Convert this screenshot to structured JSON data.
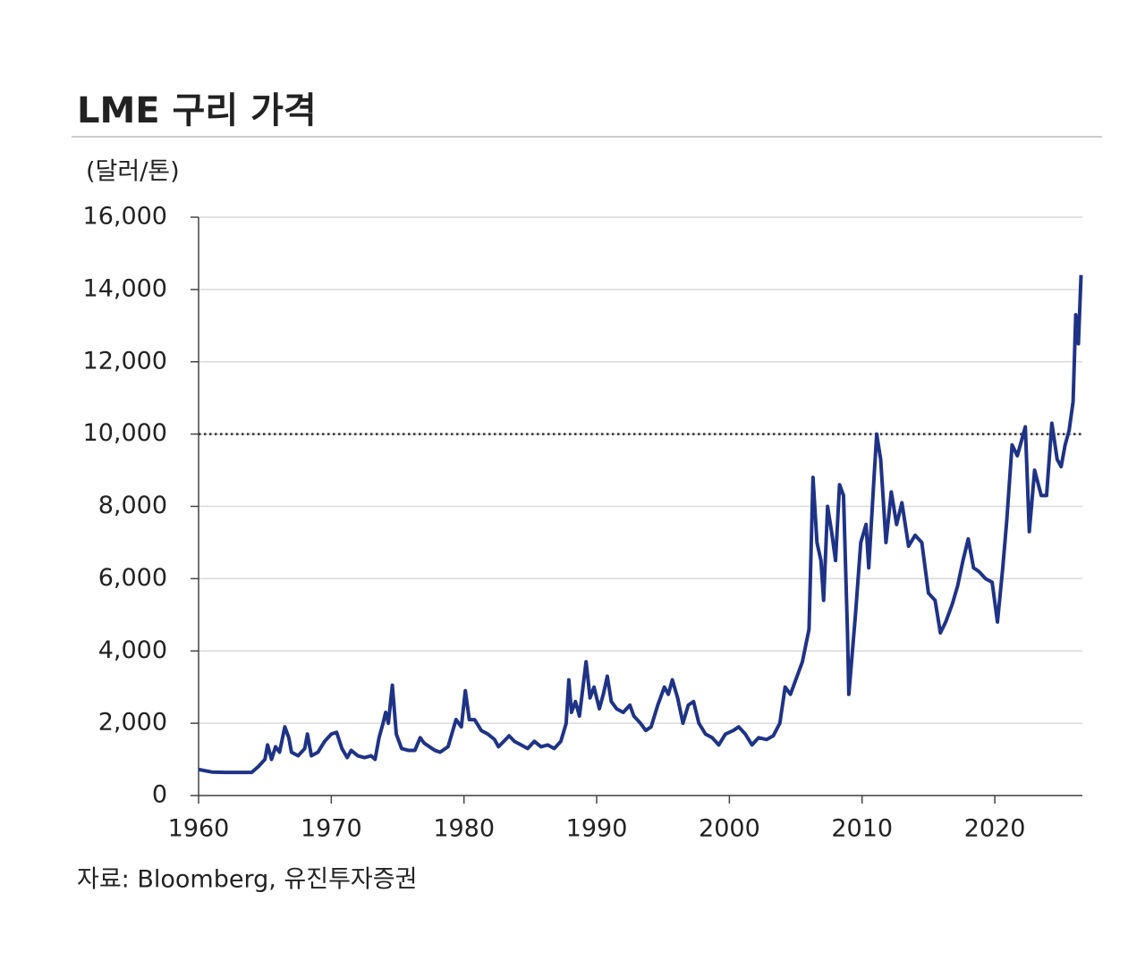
{
  "chart_data": {
    "type": "line",
    "title": "LME 구리 가격",
    "y_label": "(달러/톤)",
    "source": "자료: Bloomberg, 유진투자증권",
    "color": "#1f3386",
    "reference_line": 10000,
    "grid": true,
    "xlim": [
      1960,
      2026.6
    ],
    "ylim": [
      0,
      16000
    ],
    "xticks": [
      1960,
      1970,
      1980,
      1990,
      2000,
      2010,
      2020
    ],
    "yticks": [
      0,
      {
        "value": 2000,
        "label": "2,000"
      },
      {
        "value": 4000,
        "label": "4,000"
      },
      {
        "value": 6000,
        "label": "6,000"
      },
      {
        "value": 8000,
        "label": "8,000"
      },
      {
        "value": 10000,
        "label": "10,000"
      },
      {
        "value": 12000,
        "label": "12,000"
      },
      {
        "value": 14000,
        "label": "14,000"
      },
      {
        "value": 16000,
        "label": "16,000"
      }
    ],
    "x": [
      1960,
      1961,
      1962,
      1963,
      1964,
      1964.5,
      1965,
      1965.2,
      1965.5,
      1965.8,
      1966.1,
      1966.5,
      1966.8,
      1967,
      1967.5,
      1968,
      1968.2,
      1968.5,
      1969,
      1969.5,
      1970,
      1970.4,
      1970.8,
      1971.2,
      1971.5,
      1972,
      1972.5,
      1973,
      1973.3,
      1973.6,
      1973.9,
      1974.1,
      1974.3,
      1974.6,
      1974.9,
      1975.3,
      1975.8,
      1976.3,
      1976.7,
      1977,
      1977.4,
      1977.8,
      1978.2,
      1978.8,
      1979.4,
      1979.8,
      1980.1,
      1980.4,
      1980.8,
      1981.3,
      1981.8,
      1982.3,
      1982.6,
      1983,
      1983.4,
      1983.8,
      1984.3,
      1984.8,
      1985.3,
      1985.8,
      1986.3,
      1986.8,
      1987.3,
      1987.7,
      1987.9,
      1988.1,
      1988.4,
      1988.7,
      1989,
      1989.2,
      1989.5,
      1989.8,
      1990.2,
      1990.5,
      1990.8,
      1991.1,
      1991.5,
      1992,
      1992.5,
      1992.8,
      1993.3,
      1993.7,
      1994.1,
      1994.6,
      1995.1,
      1995.4,
      1995.7,
      1996.1,
      1996.5,
      1996.9,
      1997.3,
      1997.7,
      1998.2,
      1998.7,
      1999.2,
      1999.7,
      2000.3,
      2000.7,
      2001.2,
      2001.7,
      2002.2,
      2002.8,
      2003.3,
      2003.8,
      2004.2,
      2004.6,
      2005,
      2005.5,
      2006,
      2006.3,
      2006.6,
      2006.9,
      2007.1,
      2007.4,
      2007.7,
      2008,
      2008.3,
      2008.6,
      2008.9,
      2009,
      2009.5,
      2009.9,
      2010.3,
      2010.5,
      2010.9,
      2011.1,
      2011.4,
      2011.8,
      2012.2,
      2012.6,
      2013,
      2013.5,
      2014,
      2014.5,
      2015,
      2015.5,
      2015.9,
      2016.3,
      2016.8,
      2017.2,
      2017.6,
      2018,
      2018.4,
      2018.8,
      2019.3,
      2019.8,
      2020.2,
      2020.6,
      2020.9,
      2021.3,
      2021.7,
      2022,
      2022.3,
      2022.6,
      2023,
      2023.5,
      2023.9,
      2024.3,
      2024.7,
      2025,
      2025.3,
      2025.6,
      2025.9,
      2026.1,
      2026.3,
      2026.5
    ],
    "values": [
      720,
      650,
      640,
      640,
      640,
      800,
      1000,
      1400,
      1000,
      1350,
      1200,
      1900,
      1600,
      1200,
      1100,
      1300,
      1700,
      1100,
      1200,
      1500,
      1700,
      1750,
      1300,
      1050,
      1250,
      1100,
      1050,
      1100,
      1000,
      1600,
      2000,
      2300,
      2000,
      3050,
      1700,
      1300,
      1250,
      1250,
      1600,
      1450,
      1350,
      1250,
      1200,
      1350,
      2100,
      1900,
      2900,
      2100,
      2100,
      1800,
      1700,
      1550,
      1350,
      1500,
      1650,
      1500,
      1400,
      1300,
      1500,
      1350,
      1400,
      1300,
      1500,
      2000,
      3200,
      2300,
      2600,
      2200,
      3100,
      3700,
      2700,
      3000,
      2400,
      2800,
      3300,
      2600,
      2400,
      2300,
      2500,
      2200,
      2000,
      1800,
      1900,
      2500,
      3000,
      2800,
      3200,
      2700,
      2000,
      2500,
      2600,
      2000,
      1700,
      1600,
      1400,
      1700,
      1800,
      1900,
      1700,
      1400,
      1600,
      1550,
      1650,
      2000,
      3000,
      2800,
      3200,
      3700,
      4600,
      8800,
      7000,
      6500,
      5400,
      8000,
      7300,
      6500,
      8600,
      8300,
      4500,
      2800,
      5000,
      7000,
      7500,
      6300,
      8800,
      10000,
      9300,
      7000,
      8400,
      7500,
      8100,
      6900,
      7200,
      7000,
      5600,
      5400,
      4500,
      4800,
      5300,
      5800,
      6500,
      7100,
      6300,
      6200,
      6000,
      5900,
      4800,
      6300,
      7600,
      9700,
      9400,
      9800,
      10200,
      7300,
      9000,
      8300,
      8300,
      10300,
      9300,
      9100,
      9700,
      10100,
      10900,
      13300,
      12500,
      14400
    ]
  }
}
